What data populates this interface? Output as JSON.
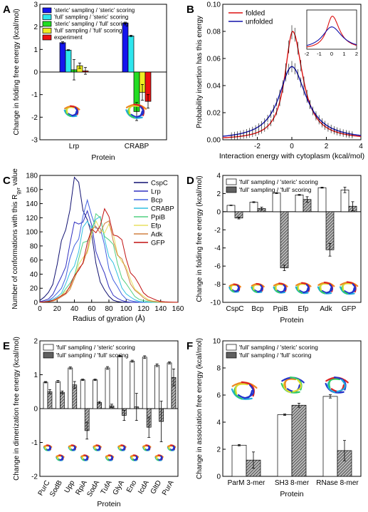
{
  "figure": {
    "background": "#ffffff",
    "text_color": "#000000"
  },
  "chart_data": [
    {
      "panel": "A",
      "type": "bar",
      "categories": [
        "Lrp",
        "CRABP"
      ],
      "series": [
        {
          "name": "'steric' sampling / 'steric' scoring",
          "color": "#1515ee",
          "values": [
            1.3,
            2.17
          ],
          "errors": [
            0.04,
            0.04
          ]
        },
        {
          "name": "'full' sampling / 'steric' scoring",
          "color": "#2ee6ee",
          "values": [
            0.97,
            1.6
          ],
          "errors": [
            0.02,
            0.03
          ]
        },
        {
          "name": "'steric' sampling / 'full' scoring",
          "color": "#22dd22",
          "values": [
            0.1,
            -1.75
          ],
          "errors": [
            0.45,
            0.4
          ]
        },
        {
          "name": "'full' sampling / 'full' scoring",
          "color": "#eeee22",
          "values": [
            0.28,
            -0.9
          ],
          "errors": [
            0.12,
            0.35
          ]
        },
        {
          "name": "experiment",
          "color": "#ee1111",
          "values": [
            0.05,
            -1.3
          ],
          "errors": [
            0.15,
            0.3
          ]
        }
      ],
      "xlabel": "Protein",
      "ylabel": "Change in folding free energy (kcal/mol)",
      "ylim": [
        -3,
        3
      ],
      "yticks": [
        -3,
        -2,
        -1,
        0,
        1,
        2,
        3
      ],
      "legend": "top-left",
      "grid": false
    },
    {
      "panel": "B",
      "type": "line",
      "series": [
        {
          "name": "folded",
          "color": "#dd1111",
          "peak_x": 0.05,
          "peak_y": 0.08,
          "width_left": 0.55,
          "width_right": 0.7
        },
        {
          "name": "unfolded",
          "color": "#1111aa",
          "peak_x": 0.0,
          "peak_y": 0.054,
          "width_left": 0.9,
          "width_right": 1.0
        }
      ],
      "xlabel": "Interaction energy with cytoplasm (kcal/mol)",
      "ylabel": "Probability insertion has this energy",
      "xlim": [
        -4,
        4
      ],
      "ylim": [
        0,
        0.1
      ],
      "xticks": [
        -2,
        0,
        2,
        4
      ],
      "yticks": [
        "0.00",
        "0.02",
        "0.04",
        "0.06",
        "0.08",
        "0.10"
      ],
      "inset": {
        "xlim": [
          -2,
          2
        ],
        "xticks": [
          "-2",
          "-1",
          "0",
          "1",
          "2"
        ]
      },
      "legend": "top-right",
      "grid": false
    },
    {
      "panel": "C",
      "type": "line",
      "series": [
        {
          "name": "CspC",
          "color": "#101070",
          "peak_x": 43,
          "peak_y": 164,
          "sigma": 15
        },
        {
          "name": "Lrp",
          "color": "#3030c0",
          "peak_x": 50,
          "peak_y": 125,
          "sigma": 16
        },
        {
          "name": "Bcp",
          "color": "#4060e0",
          "peak_x": 57,
          "peak_y": 131,
          "sigma": 17
        },
        {
          "name": "CRABP",
          "color": "#30c0e0",
          "peak_x": 62,
          "peak_y": 120,
          "sigma": 18
        },
        {
          "name": "PpiB",
          "color": "#50d080",
          "peak_x": 67,
          "peak_y": 115,
          "sigma": 19
        },
        {
          "name": "Efp",
          "color": "#e8e060",
          "peak_x": 72,
          "peak_y": 110,
          "sigma": 21
        },
        {
          "name": "Adk",
          "color": "#d08040",
          "peak_x": 72,
          "peak_y": 112,
          "sigma": 20
        },
        {
          "name": "GFP",
          "color": "#c01010",
          "peak_x": 75,
          "peak_y": 120,
          "sigma": 22
        }
      ],
      "xlabel": "Radius of gyration (Å)",
      "ylabel": "Number of conformations with this R",
      "ylabel_sub": "gyr",
      "ylabel_tail": " value",
      "xlim": [
        0,
        160
      ],
      "ylim": [
        0,
        180
      ],
      "xticks": [
        0,
        20,
        40,
        60,
        80,
        100,
        120,
        140,
        160
      ],
      "yticks": [
        0,
        20,
        40,
        60,
        80,
        100,
        120,
        140,
        160,
        180
      ],
      "legend": "top-right",
      "grid": false
    },
    {
      "panel": "D",
      "type": "bar",
      "categories": [
        "CspC",
        "Bcp",
        "PpiB",
        "Efp",
        "Adk",
        "GFP"
      ],
      "series": [
        {
          "name": "'full' sampling / 'steric' scoring",
          "color": "#ffffff",
          "values": [
            0.7,
            1.05,
            2.05,
            1.85,
            2.65,
            2.4
          ],
          "errors": [
            0.03,
            0.05,
            0.05,
            0.05,
            0.05,
            0.3
          ]
        },
        {
          "name": "'full' sampling / 'full' scoring",
          "color": "#606060",
          "values": [
            -0.7,
            0.35,
            -6.2,
            1.35,
            -4.2,
            0.6
          ],
          "errors": [
            0.1,
            0.15,
            0.3,
            0.3,
            0.7,
            0.5
          ]
        }
      ],
      "xlabel": "Protein",
      "ylabel": "Change in folding free energy (kcal/mol)",
      "ylim": [
        -10,
        4
      ],
      "yticks": [
        -10,
        -8,
        -6,
        -4,
        -2,
        0,
        2,
        4
      ],
      "legend": "top-left",
      "grid": false
    },
    {
      "panel": "E",
      "type": "bar",
      "categories": [
        "PurC",
        "SodB",
        "Upp",
        "RpiA",
        "SodA",
        "TufA",
        "GlyA",
        "Eno",
        "IcdA",
        "GltD",
        "PurA"
      ],
      "series": [
        {
          "name": "'full' sampling / 'steric' scoring",
          "color": "#ffffff",
          "values": [
            0.78,
            0.8,
            1.2,
            0.85,
            0.85,
            1.2,
            1.55,
            1.4,
            1.52,
            1.28,
            1.35
          ],
          "errors": [
            0.02,
            0.03,
            0.03,
            0.02,
            0.02,
            0.04,
            0.02,
            0.03,
            0.04,
            0.04,
            0.03
          ]
        },
        {
          "name": "'full' sampling / 'full' scoring",
          "color": "#606060",
          "values": [
            0.5,
            0.48,
            0.7,
            -0.65,
            0.18,
            0.08,
            -0.2,
            0.05,
            -0.55,
            -0.38,
            0.92
          ]
        },
        {
          "name": "errors_full",
          "values": [
            0.06,
            0.04,
            0.1,
            0.25,
            0.03,
            0.05,
            0.15,
            0.4,
            0.3,
            0.6,
            0.25
          ]
        }
      ],
      "xlabel": "Protein",
      "ylabel": "Change in dimerization free energy (kcal/mol)",
      "ylim": [
        -2,
        2
      ],
      "yticks": [
        -2,
        -1,
        0,
        1,
        2
      ],
      "legend": "top-left",
      "grid": false
    },
    {
      "panel": "F",
      "type": "bar",
      "categories": [
        "ParM 3-mer",
        "SH3 8-mer",
        "RNase 8-mer"
      ],
      "series": [
        {
          "name": "'full' sampling / 'steric' scoring",
          "color": "#ffffff",
          "values": [
            2.3,
            4.55,
            5.9
          ],
          "errors": [
            0.05,
            0.05,
            0.12
          ]
        },
        {
          "name": "'full' sampling / 'full' scoring",
          "color": "#606060",
          "values": [
            1.2,
            5.25,
            1.9
          ],
          "errors": [
            0.6,
            0.15,
            0.75
          ]
        }
      ],
      "xlabel": "Protein",
      "ylabel": "Change in association free energy (kcal/mol)",
      "ylim": [
        0,
        10
      ],
      "yticks": [
        0,
        2,
        4,
        6,
        8,
        10
      ],
      "legend": "top-left",
      "grid": false
    }
  ]
}
